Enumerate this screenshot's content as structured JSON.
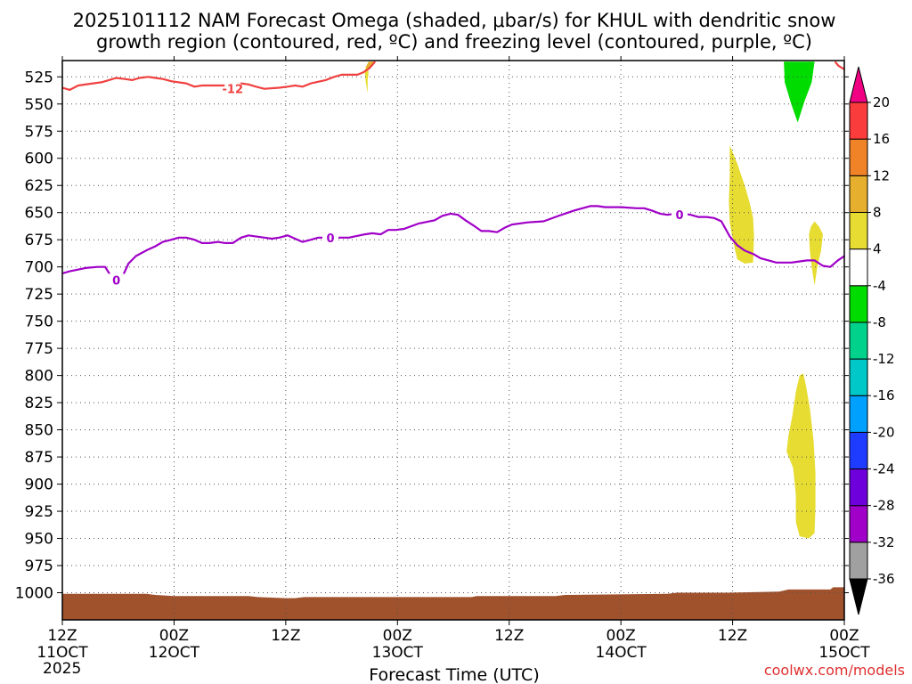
{
  "title_line1": "2025101112 NAM Forecast Omega (shaded, μbar/s) for KHUL with dendritic snow",
  "title_line2": "growth region (contoured, red, ºC) and freezing level (contoured, purple, ºC)",
  "xlabel": "Forecast Time (UTC)",
  "credit": "coolwx.com/models",
  "chart_data": {
    "type": "contour",
    "x_unit": "forecast hour",
    "xlim": [
      0,
      84
    ],
    "y_unit": "hPa",
    "ylim": [
      1025,
      510
    ],
    "y_ticks": [
      525,
      550,
      575,
      600,
      625,
      650,
      675,
      700,
      725,
      750,
      775,
      800,
      825,
      850,
      875,
      900,
      925,
      950,
      975,
      1000
    ],
    "x_ticks": [
      {
        "hour": 0,
        "line1": "12Z",
        "line2": "11OCT",
        "line3": "2025"
      },
      {
        "hour": 12,
        "line1": "00Z",
        "line2": "12OCT"
      },
      {
        "hour": 24,
        "line1": "12Z",
        "line2": ""
      },
      {
        "hour": 36,
        "line1": "00Z",
        "line2": "13OCT"
      },
      {
        "hour": 48,
        "line1": "12Z",
        "line2": ""
      },
      {
        "hour": 60,
        "line1": "00Z",
        "line2": "14OCT"
      },
      {
        "hour": 72,
        "line1": "12Z",
        "line2": ""
      },
      {
        "hour": 84,
        "line1": "00Z",
        "line2": "15OCT"
      }
    ],
    "grid": true,
    "colorbar": {
      "levels": [
        -36,
        -32,
        -28,
        -24,
        -20,
        -16,
        -12,
        -8,
        -4,
        4,
        8,
        12,
        16,
        20
      ],
      "colors": [
        "#a0a0a0",
        "#a000c8",
        "#6e00dc",
        "#1e3cff",
        "#00a0ff",
        "#00c8c8",
        "#00d28c",
        "#00dc00",
        "#ffffff",
        "#e6dc32",
        "#e6af2d",
        "#f08228",
        "#fa3c3c",
        "#f00082"
      ],
      "under_color": "#000000",
      "over_color": "#f00082"
    },
    "series": [
      {
        "name": "-12",
        "color": "#f04040",
        "label": {
          "text": "-12",
          "x": 18.3,
          "y": 536
        },
        "points": [
          [
            0,
            535
          ],
          [
            0.8,
            537
          ],
          [
            1.7,
            533
          ],
          [
            3.3,
            531
          ],
          [
            4.2,
            530
          ],
          [
            5.0,
            528
          ],
          [
            5.8,
            526
          ],
          [
            6.7,
            527
          ],
          [
            7.5,
            528
          ],
          [
            8.3,
            526
          ],
          [
            9.2,
            525
          ],
          [
            10.0,
            526
          ],
          [
            10.8,
            527
          ],
          [
            11.7,
            529
          ],
          [
            13.3,
            531
          ],
          [
            14.2,
            534
          ],
          [
            15.0,
            533
          ],
          [
            16.7,
            533
          ],
          [
            17.5,
            533
          ],
          [
            18.3,
            532
          ],
          [
            19.2,
            531
          ],
          [
            20.0,
            532
          ],
          [
            20.8,
            534
          ],
          [
            21.7,
            536
          ],
          [
            23.3,
            535
          ],
          [
            24.2,
            534
          ],
          [
            25.0,
            533
          ],
          [
            25.8,
            534
          ],
          [
            26.7,
            531
          ],
          [
            28.3,
            528
          ],
          [
            29.2,
            525
          ],
          [
            30.0,
            523
          ],
          [
            30.8,
            523
          ],
          [
            31.7,
            523
          ],
          [
            32.3,
            521
          ],
          [
            33.0,
            517
          ],
          [
            33.6,
            511
          ]
        ]
      },
      {
        "name": "-12 (right edge)",
        "color": "#f04040",
        "points": [
          [
            83.0,
            511
          ],
          [
            83.4,
            515
          ],
          [
            84,
            518
          ]
        ]
      },
      {
        "name": "0",
        "color": "#a000c8",
        "label_1": {
          "text": "0",
          "x": 5.8,
          "y": 712
        },
        "label_2": {
          "text": "0",
          "x": 28.8,
          "y": 673
        },
        "label_3": {
          "text": "0",
          "x": 66.3,
          "y": 652
        },
        "points": [
          [
            0,
            706
          ],
          [
            0.8,
            704
          ],
          [
            2.5,
            701
          ],
          [
            3.8,
            700
          ],
          [
            4.6,
            700
          ],
          [
            5.4,
            711
          ],
          [
            6.3,
            712
          ],
          [
            7.1,
            697
          ],
          [
            7.9,
            690
          ],
          [
            9.2,
            684
          ],
          [
            10.0,
            681
          ],
          [
            10.8,
            677
          ],
          [
            11.7,
            675
          ],
          [
            12.5,
            673
          ],
          [
            13.3,
            673
          ],
          [
            14.2,
            675
          ],
          [
            15.0,
            678
          ],
          [
            15.8,
            678
          ],
          [
            16.7,
            677
          ],
          [
            17.5,
            678
          ],
          [
            18.3,
            678
          ],
          [
            19.2,
            673
          ],
          [
            20.0,
            671
          ],
          [
            21.7,
            673
          ],
          [
            22.5,
            674
          ],
          [
            23.3,
            673
          ],
          [
            24.2,
            671
          ],
          [
            25.0,
            674
          ],
          [
            25.8,
            677
          ],
          [
            26.7,
            675
          ],
          [
            27.5,
            673
          ],
          [
            28.3,
            673
          ],
          [
            30.0,
            673
          ],
          [
            30.8,
            673
          ],
          [
            32.5,
            670
          ],
          [
            33.3,
            669
          ],
          [
            34.2,
            670
          ],
          [
            35.0,
            666
          ],
          [
            35.8,
            666
          ],
          [
            36.7,
            665
          ],
          [
            38.3,
            660
          ],
          [
            40.0,
            657
          ],
          [
            40.8,
            653
          ],
          [
            41.7,
            651
          ],
          [
            42.5,
            652
          ],
          [
            43.3,
            657
          ],
          [
            44.2,
            662
          ],
          [
            45.0,
            667
          ],
          [
            45.8,
            667
          ],
          [
            46.7,
            668
          ],
          [
            47.5,
            664
          ],
          [
            48.3,
            661
          ],
          [
            50.0,
            659
          ],
          [
            51.7,
            658
          ],
          [
            53.3,
            653
          ],
          [
            55.0,
            648
          ],
          [
            56.7,
            644
          ],
          [
            57.5,
            644
          ],
          [
            58.3,
            645
          ],
          [
            60.0,
            645
          ],
          [
            61.7,
            646
          ],
          [
            62.5,
            646
          ],
          [
            63.3,
            648
          ],
          [
            64.2,
            651
          ],
          [
            65.0,
            652
          ],
          [
            65.8,
            651
          ],
          [
            66.7,
            651
          ],
          [
            67.5,
            652
          ],
          [
            68.3,
            654
          ],
          [
            69.2,
            654
          ],
          [
            70.0,
            655
          ],
          [
            70.8,
            658
          ],
          [
            71.7,
            672
          ],
          [
            72.5,
            680
          ],
          [
            73.3,
            685
          ],
          [
            74.2,
            688
          ],
          [
            75.0,
            692
          ],
          [
            76.7,
            696
          ],
          [
            77.5,
            696
          ],
          [
            78.3,
            696
          ],
          [
            80.0,
            694
          ],
          [
            80.8,
            694
          ],
          [
            81.7,
            699
          ],
          [
            82.5,
            700
          ],
          [
            83.3,
            694
          ],
          [
            84,
            690
          ]
        ]
      }
    ],
    "shaded_regions": [
      {
        "level": 4,
        "color": "#e6dc32",
        "points": [
          [
            71.7,
            588
          ],
          [
            72.5,
            605
          ],
          [
            73.3,
            625
          ],
          [
            73.8,
            640
          ],
          [
            74.2,
            655
          ],
          [
            74.3,
            672
          ],
          [
            74.2,
            696
          ],
          [
            73.3,
            697
          ],
          [
            72.5,
            693
          ],
          [
            72.1,
            678
          ],
          [
            71.7,
            660
          ],
          [
            71.6,
            640
          ],
          [
            71.7,
            615
          ]
        ]
      },
      {
        "level": 4,
        "color": "#e6dc32",
        "points": [
          [
            80.8,
            658
          ],
          [
            81.3,
            663
          ],
          [
            81.7,
            670
          ],
          [
            81.5,
            685
          ],
          [
            81.1,
            700
          ],
          [
            80.8,
            717
          ],
          [
            80.5,
            700
          ],
          [
            80.3,
            685
          ],
          [
            80.2,
            670
          ],
          [
            80.4,
            663
          ]
        ]
      },
      {
        "level": 4,
        "color": "#e6dc32",
        "points": [
          [
            79.6,
            798
          ],
          [
            79.9,
            810
          ],
          [
            80.3,
            830
          ],
          [
            80.7,
            860
          ],
          [
            80.9,
            890
          ],
          [
            80.9,
            920
          ],
          [
            80.8,
            945
          ],
          [
            80.2,
            950
          ],
          [
            79.2,
            948
          ],
          [
            78.8,
            935
          ],
          [
            78.8,
            910
          ],
          [
            78.5,
            885
          ],
          [
            77.8,
            870
          ],
          [
            78.0,
            855
          ],
          [
            78.4,
            838
          ],
          [
            78.8,
            815
          ],
          [
            79.2,
            800
          ]
        ]
      },
      {
        "level": 4,
        "color": "#e6af2d",
        "points": [
          [
            32.5,
            522
          ],
          [
            33.1,
            516
          ],
          [
            33.6,
            511
          ],
          [
            32.9,
            511
          ],
          [
            32.6,
            516
          ]
        ]
      },
      {
        "level": 4,
        "color": "#e6dc32",
        "points": [
          [
            32.5,
            522
          ],
          [
            32.6,
            530
          ],
          [
            32.8,
            540
          ],
          [
            32.8,
            528
          ],
          [
            32.9,
            520
          ],
          [
            32.6,
            516
          ]
        ]
      },
      {
        "level": -4,
        "color": "#00dc00",
        "points": [
          [
            77.5,
            511
          ],
          [
            80.8,
            511
          ],
          [
            80.5,
            530
          ],
          [
            79.7,
            548
          ],
          [
            79.0,
            567
          ],
          [
            78.3,
            550
          ],
          [
            77.6,
            530
          ]
        ]
      }
    ],
    "surface_fill": {
      "color": "#a0522d",
      "points": [
        [
          0,
          1001
        ],
        [
          9,
          1001
        ],
        [
          10,
          1002
        ],
        [
          12,
          1003
        ],
        [
          20,
          1003
        ],
        [
          21,
          1004
        ],
        [
          24,
          1005
        ],
        [
          25,
          1005
        ],
        [
          26,
          1004
        ],
        [
          36,
          1004
        ],
        [
          44,
          1004
        ],
        [
          44.5,
          1003
        ],
        [
          53,
          1003
        ],
        [
          54,
          1002
        ],
        [
          65,
          1001
        ],
        [
          66,
          1000
        ],
        [
          71.5,
          1000
        ],
        [
          77,
          999
        ],
        [
          78,
          997
        ],
        [
          82.5,
          997
        ],
        [
          82.8,
          995
        ],
        [
          84,
          995
        ]
      ]
    }
  }
}
